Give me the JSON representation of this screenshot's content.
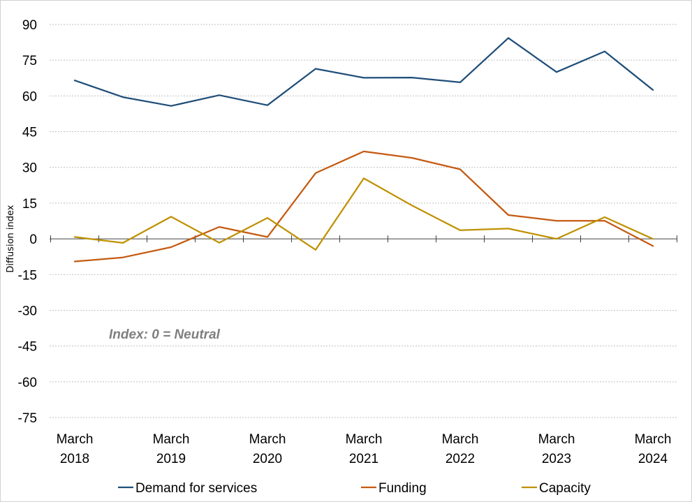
{
  "chart_data": {
    "type": "line",
    "title": "",
    "xlabel": "",
    "ylabel": "Diffusion index",
    "ylim": [
      -75,
      90
    ],
    "yticks": [
      90,
      75,
      60,
      45,
      30,
      15,
      0,
      -15,
      -30,
      -45,
      -60,
      -75
    ],
    "grid": true,
    "x": [
      "Mar 2018",
      "Sep 2018",
      "Mar 2019",
      "Sep 2019",
      "Mar 2020",
      "Sep 2020",
      "Mar 2021",
      "Sep 2021",
      "Mar 2022",
      "Sep 2022",
      "Mar 2023",
      "Sep 2023",
      "Mar 2024"
    ],
    "x_tick_labels": [
      {
        "index": 0,
        "line1": "March",
        "line2": "2018"
      },
      {
        "index": 2,
        "line1": "March",
        "line2": "2019"
      },
      {
        "index": 4,
        "line1": "March",
        "line2": "2020"
      },
      {
        "index": 6,
        "line1": "March",
        "line2": "2021"
      },
      {
        "index": 8,
        "line1": "March",
        "line2": "2022"
      },
      {
        "index": 10,
        "line1": "March",
        "line2": "2023"
      },
      {
        "index": 12,
        "line1": "March",
        "line2": "2024"
      }
    ],
    "series": [
      {
        "name": "Demand for services",
        "color": "#1f4e79",
        "values": [
          66.5,
          59.5,
          55.8,
          60.3,
          56.1,
          71.4,
          67.6,
          67.7,
          65.7,
          84.3,
          70.0,
          78.7,
          62.5
        ]
      },
      {
        "name": "Funding",
        "color": "#c55a11",
        "values": [
          -9.5,
          -7.8,
          -3.5,
          5.0,
          0.8,
          27.6,
          36.7,
          34.0,
          29.2,
          10.0,
          7.6,
          7.6,
          -3.0
        ]
      },
      {
        "name": "Capacity",
        "color": "#bf9000",
        "values": [
          0.8,
          -1.7,
          9.3,
          -1.6,
          8.8,
          -4.6,
          25.4,
          14.0,
          3.6,
          4.3,
          0.0,
          9.1,
          0.0
        ]
      }
    ],
    "annotation": "Index: 0 = Neutral",
    "legend_position": "bottom"
  }
}
